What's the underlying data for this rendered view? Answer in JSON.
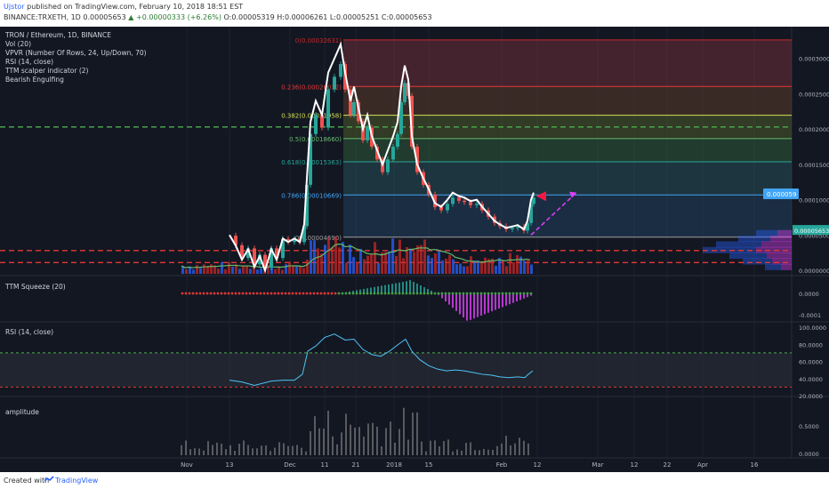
{
  "header": {
    "author": "Ujstor",
    "published_text": "published on TradingView.com, February 10, 2018 18:51 EST",
    "symbol_line": "BINANCE:TRXETH, 1D 0.00005653",
    "change": "▲ +0.00000333 (+6.26%)",
    "ohlc": "O:0.00005319 H:0.00006261 L:0.00005251 C:0.00005653"
  },
  "legend": [
    "TRON / Ethereum, 1D, BINANCE",
    "Vol (20)",
    "VPVR (Number Of Rows, 24, Up/Down, 70)",
    "RSI (14, close)",
    "TTM scalper indicator (2)",
    "Bearish Engulfing"
  ],
  "colors": {
    "background": "#131722",
    "up_candle": "#26a69a",
    "down_candle": "#ef5350",
    "rsi_line": "#4fc3f7",
    "price_overlay": "#ffffff",
    "dashed_green": "#4caf50",
    "dashed_red": "#e53935",
    "projection": "#e040fb",
    "volume_ma": "#66bb6a"
  },
  "chart_data": [
    {
      "type": "line",
      "name": "price",
      "x_ticks": [
        "Nov",
        "13",
        "Dec",
        "11",
        "21",
        "2018",
        "15",
        "Feb",
        "12",
        "Mar",
        "12",
        "22",
        "Apr",
        "16"
      ],
      "y_ticks": [
        "0.00030000",
        "0.00025000",
        "0.00020000",
        "0.00015000",
        "0.00010000",
        "0.00005000",
        "0.00000000"
      ],
      "ylim": [
        -5e-06,
        0.000345
      ],
      "fib_levels": [
        {
          "label": "0(0.00032631)",
          "value": 0.00032631,
          "color": "#c62828"
        },
        {
          "label": "0.236(0.00026032)",
          "value": 0.00026032,
          "color": "#e53935"
        },
        {
          "label": "0.382(0.00021958)",
          "value": 0.00021958,
          "color": "#d4e157"
        },
        {
          "label": "0.5(0.00018660)",
          "value": 0.0001866,
          "color": "#66bb6a"
        },
        {
          "label": "0.618(0.00015363)",
          "value": 0.00015363,
          "color": "#26a69a"
        },
        {
          "label": "0.786(0.00010669)",
          "value": 0.00010669,
          "color": "#42a5f5"
        },
        {
          "label": "0(0.00004690)",
          "value": 4.69e-05,
          "color": "#9e9e9e"
        }
      ],
      "price_line": [
        [
          258,
          5e-05
        ],
        [
          265,
          3.5e-05
        ],
        [
          272,
          1.5e-05
        ],
        [
          279,
          3e-05
        ],
        [
          286,
          5e-06
        ],
        [
          292,
          2e-05
        ],
        [
          298,
          -1e-07
        ],
        [
          305,
          3e-05
        ],
        [
          311,
          1.5e-05
        ],
        [
          318,
          4.5e-05
        ],
        [
          324,
          4e-05
        ],
        [
          331,
          4.5e-05
        ],
        [
          337,
          4e-05
        ],
        [
          342,
          6.5e-05
        ],
        [
          345,
          0.00013
        ],
        [
          349,
          0.00021
        ],
        [
          355,
          0.00024
        ],
        [
          362,
          0.00022
        ],
        [
          369,
          0.00028
        ],
        [
          376,
          0.0003
        ],
        [
          383,
          0.00032
        ],
        [
          388,
          0.00028
        ],
        [
          394,
          0.00024
        ],
        [
          398,
          0.00026
        ],
        [
          403,
          0.00023
        ],
        [
          408,
          0.0002
        ],
        [
          413,
          0.00022
        ],
        [
          418,
          0.00019
        ],
        [
          424,
          0.00017
        ],
        [
          430,
          0.00015
        ],
        [
          436,
          0.00017
        ],
        [
          442,
          0.00019
        ],
        [
          447,
          0.00021
        ],
        [
          451,
          0.00026
        ],
        [
          455,
          0.00029
        ],
        [
          459,
          0.00027
        ],
        [
          463,
          0.00019
        ],
        [
          469,
          0.00015
        ],
        [
          476,
          0.00013
        ],
        [
          482,
          0.000115
        ],
        [
          489,
          9.5e-05
        ],
        [
          496,
          9e-05
        ],
        [
          503,
          0.0001
        ],
        [
          509,
          0.00011
        ],
        [
          516,
          0.000105
        ],
        [
          522,
          0.000103
        ],
        [
          529,
          9.8e-05
        ],
        [
          536,
          0.0001
        ],
        [
          542,
          9e-05
        ],
        [
          549,
          8e-05
        ],
        [
          556,
          7e-05
        ],
        [
          562,
          6.5e-05
        ],
        [
          569,
          6e-05
        ],
        [
          576,
          6.2e-05
        ],
        [
          582,
          6.4e-05
        ],
        [
          589,
          5.8e-05
        ],
        [
          593,
          7e-05
        ],
        [
          597,
          0.0001
        ],
        [
          600,
          0.00011
        ]
      ],
      "projection": [
        [
          597,
          5e-05
        ],
        [
          648,
          0.00011
        ]
      ],
      "last_price": "0.00005653",
      "price_marker": "0.000059",
      "dashed_lines": [
        {
          "value": 0.000203,
          "color": "#4caf50"
        },
        {
          "value": 2.8e-05,
          "color": "#e53935"
        },
        {
          "value": 1.1e-05,
          "color": "#e53935"
        }
      ]
    },
    {
      "type": "bar",
      "name": "TTM Squeeze (20)",
      "y_ticks": [
        "0.0000",
        "-0.0001"
      ]
    },
    {
      "type": "line",
      "name": "RSI (14, close)",
      "y_ticks": [
        "100.0000",
        "80.0000",
        "60.0000",
        "40.0000",
        "20.0000"
      ],
      "ylim": [
        20,
        100
      ],
      "bands": [
        70,
        30
      ],
      "points": [
        [
          258,
          38
        ],
        [
          272,
          36
        ],
        [
          286,
          32
        ],
        [
          305,
          37
        ],
        [
          318,
          38
        ],
        [
          331,
          38
        ],
        [
          340,
          45
        ],
        [
          346,
          72
        ],
        [
          355,
          78
        ],
        [
          365,
          88
        ],
        [
          376,
          92
        ],
        [
          388,
          85
        ],
        [
          398,
          86
        ],
        [
          408,
          74
        ],
        [
          418,
          68
        ],
        [
          428,
          66
        ],
        [
          438,
          72
        ],
        [
          448,
          80
        ],
        [
          456,
          86
        ],
        [
          463,
          72
        ],
        [
          472,
          62
        ],
        [
          482,
          55
        ],
        [
          492,
          51
        ],
        [
          502,
          49
        ],
        [
          512,
          50
        ],
        [
          522,
          49
        ],
        [
          532,
          47
        ],
        [
          542,
          45
        ],
        [
          552,
          44
        ],
        [
          562,
          42
        ],
        [
          572,
          41
        ],
        [
          582,
          42
        ],
        [
          590,
          41
        ],
        [
          594,
          45
        ],
        [
          599,
          49
        ]
      ]
    },
    {
      "type": "bar",
      "name": "amplitude",
      "y_ticks": [
        "0.5000",
        "0.0000"
      ]
    }
  ],
  "footer": {
    "created_with": "Created with",
    "brand": "TradingView"
  }
}
